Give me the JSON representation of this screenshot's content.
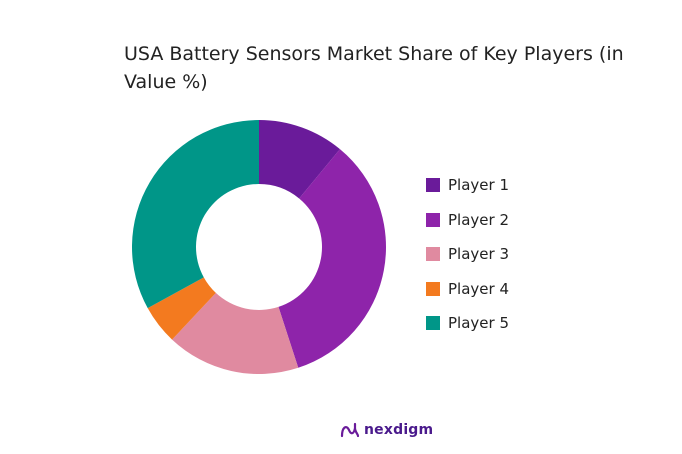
{
  "chart_data": {
    "type": "pie",
    "style": "donut",
    "title": "USA Battery Sensors Market Share of Key Players (in Value %)",
    "categories": [
      "Player 1",
      "Player 2",
      "Player 3",
      "Player 4",
      "Player 5"
    ],
    "values": [
      11,
      34,
      17,
      5,
      33
    ],
    "unit": "%",
    "colors": [
      "#6a1b9a",
      "#8e24aa",
      "#e08aa0",
      "#f37a1f",
      "#009688"
    ],
    "legend": "right",
    "start_angle_deg": 0,
    "direction": "clockwise"
  },
  "brand": {
    "name": "nexdigm",
    "icon": "nexdigm-logo-icon"
  }
}
